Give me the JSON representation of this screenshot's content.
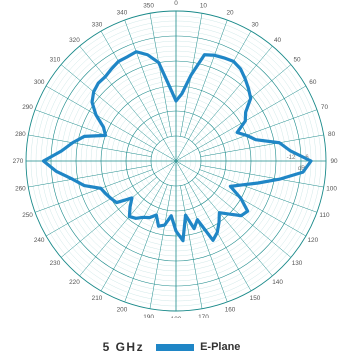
{
  "colors": {
    "grid": "#1a8a8a",
    "minor_grid": "#bcdede",
    "series": "#1f86c6",
    "axis": "#2a8a8a"
  },
  "legend": {
    "frequency": "5  GHz",
    "series_name": "E-Plane"
  },
  "chart_data": {
    "type": "polar-line",
    "title": "",
    "angle_ticks": [
      "0",
      "10",
      "20",
      "30",
      "40",
      "50",
      "60",
      "70",
      "80",
      "90",
      "100",
      "110",
      "120",
      "130",
      "140",
      "150",
      "160",
      "170",
      "180",
      "190",
      "200",
      "210",
      "220",
      "230",
      "240",
      "250",
      "260",
      "270",
      "280",
      "290",
      "300",
      "310",
      "320",
      "330",
      "340",
      "350"
    ],
    "radial_range": [
      -60,
      0
    ],
    "radial_unit": "dB",
    "radial_tick_labels": [
      "-6",
      "-12"
    ],
    "radial_tick_values": [
      -6,
      -12
    ],
    "grid": true,
    "series": [
      {
        "name": "E-Plane",
        "angles": [
          0,
          5,
          10,
          15,
          20,
          25,
          30,
          35,
          40,
          45,
          50,
          55,
          60,
          65,
          70,
          75,
          80,
          85,
          90,
          95,
          100,
          105,
          110,
          115,
          120,
          125,
          130,
          135,
          140,
          145,
          150,
          155,
          160,
          165,
          170,
          175,
          180,
          185,
          190,
          195,
          200,
          205,
          210,
          215,
          220,
          225,
          230,
          235,
          240,
          245,
          250,
          255,
          260,
          265,
          270,
          275,
          280,
          285,
          290,
          295,
          300,
          305,
          310,
          315,
          320,
          325,
          330,
          335,
          340,
          345,
          350,
          355
        ],
        "values": [
          -36,
          -33,
          -25,
          -16,
          -15,
          -14.5,
          -14,
          -15,
          -17,
          -19,
          -21,
          -26,
          -28,
          -33,
          -30,
          -27,
          -18,
          -14,
          -6,
          -9,
          -18,
          -26,
          -32,
          -36,
          -30,
          -25,
          -26,
          -30,
          -33,
          -30,
          -27,
          -25,
          -35,
          -32,
          -38,
          -28,
          -32,
          -38,
          -34,
          -33,
          -37,
          -35,
          -34,
          -32,
          -31,
          -34,
          -37,
          -31,
          -30,
          -29,
          -28,
          -22,
          -18,
          -12,
          -7,
          -14,
          -18,
          -22,
          -30,
          -28,
          -23,
          -19,
          -17,
          -16,
          -16,
          -15,
          -14,
          -14,
          -13.5,
          -16,
          -20,
          -30
        ]
      }
    ]
  }
}
